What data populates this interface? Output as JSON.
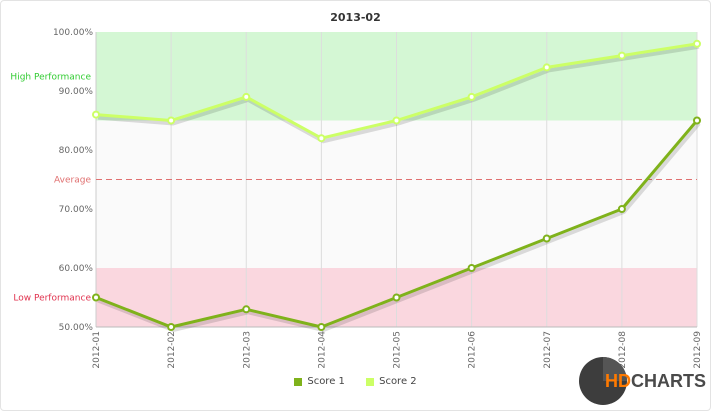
{
  "chart_data": {
    "type": "line",
    "title": "2013-02",
    "x": [
      "2012-01",
      "2012-02",
      "2012-03",
      "2012-04",
      "2012-05",
      "2012-06",
      "2012-07",
      "2012-08",
      "2012-09"
    ],
    "ylim": [
      50,
      100
    ],
    "yticks": [
      "50.00%",
      "60.00%",
      "70.00%",
      "80.00%",
      "90.00%",
      "100.00%"
    ],
    "ytick_values": [
      50,
      60,
      70,
      80,
      90,
      100
    ],
    "series": [
      {
        "name": "Score 1",
        "color": "#7fb21b",
        "values": [
          55,
          50,
          53,
          50,
          55,
          60,
          65,
          70,
          85
        ]
      },
      {
        "name": "Score 2",
        "color": "#ccff66",
        "values": [
          86,
          85,
          89,
          82,
          85,
          89,
          94,
          96,
          98
        ]
      }
    ],
    "bands": [
      {
        "label": "High Performance",
        "from": 85,
        "to": 100,
        "color": "#d4f7d4",
        "label_color": "#33cc33",
        "label_value": 92.5
      },
      {
        "label": "Low Performance",
        "from": 50,
        "to": 60,
        "color": "#fad7df",
        "label_color": "#e0334f",
        "label_value": 55
      }
    ],
    "reference_line": {
      "label": "Average",
      "value": 75,
      "color": "#e07070"
    },
    "grid": true,
    "legend": "bottom-center"
  },
  "branding": {
    "logo_hd": "HD",
    "logo_charts": "CHARTS"
  }
}
